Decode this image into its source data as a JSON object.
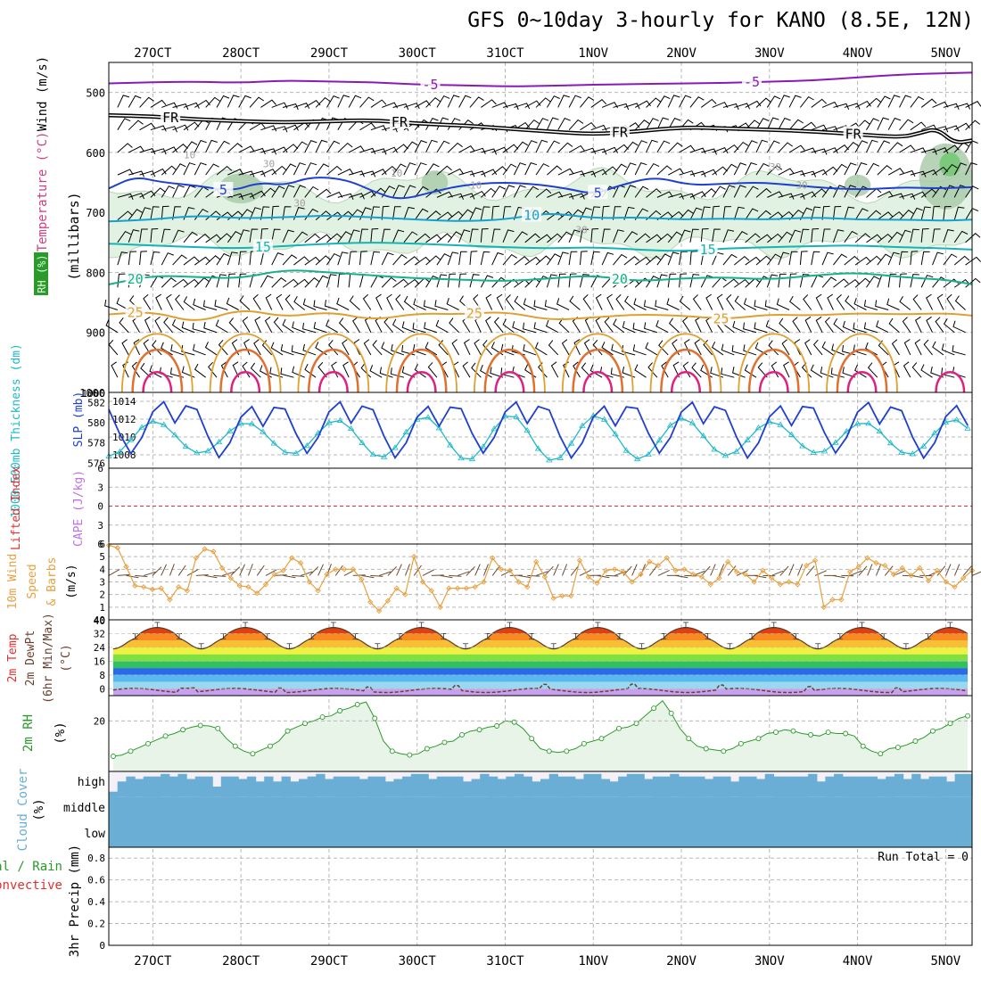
{
  "title": "GFS 0~10day 3-hourly for KANO (8.5E, 12N)",
  "colors": {
    "frame": "#000000",
    "grid": "#b8b8b8",
    "t_m5": "#8a1ab8",
    "t_fr": "#000000",
    "t_5": "#1f3fd0",
    "t_10": "#14a0d0",
    "t_15": "#14b4b4",
    "t_20": "#16b08a",
    "t_25": "#e0a030",
    "t_30": "#e07030",
    "t_35": "#e02080",
    "rh_fill": "#e2f2e2",
    "rh_line": "#2a9a2a",
    "slp": "#1f3fd0",
    "thickness": "#20b8c8",
    "lifted": "#e03030",
    "cape": "#c070e0",
    "wind_speed": "#e8a040",
    "barb": "#000000",
    "dewpt": "#6a4030",
    "cloud": "#6aaed6",
    "cloud_bg": "#f4f0f8",
    "precip_total": "#2a9a2a",
    "precip_conv": "#e03030"
  },
  "chart_data": [
    {
      "type": "line",
      "panel": "pressure-time cross-section",
      "title": "Wind / Temperature / RH",
      "xlabel": "",
      "ylabel": "millibars",
      "ylabel_parts": {
        "wind": "Wind (m/s)",
        "temp": "Temperature (°C)",
        "rh": "RH (%)",
        "mb": "(millibars)"
      },
      "x_categories": [
        "27OCT",
        "28OCT",
        "29OCT",
        "30OCT",
        "31OCT",
        "1NOV",
        "2NOV",
        "3NOV",
        "4NOV",
        "5NOV"
      ],
      "x_day_positions": [
        0.5,
        1.5,
        2.5,
        3.5,
        4.5,
        5.5,
        6.5,
        7.5,
        8.5,
        9.5
      ],
      "x_range": [
        0,
        9.8
      ],
      "ylim": [
        1000,
        450
      ],
      "yticks": [
        500,
        600,
        700,
        800,
        900,
        1000
      ],
      "series": [
        {
          "name": "-5",
          "color_key": "t_m5",
          "label": "-5",
          "label_x": [
            3.65,
            7.3
          ],
          "x": [
            0,
            0.5,
            1,
            1.5,
            2,
            2.5,
            3,
            3.5,
            4,
            4.5,
            5,
            5.5,
            6,
            6.5,
            7,
            7.5,
            8,
            8.5,
            9,
            9.5,
            9.8
          ],
          "p": [
            485,
            483,
            482,
            484,
            480,
            482,
            483,
            487,
            488,
            490,
            489,
            487,
            486,
            485,
            484,
            482,
            480,
            475,
            470,
            468,
            467
          ]
        },
        {
          "name": "FR",
          "color_key": "t_fr",
          "label": "FR",
          "label_x": [
            0.7,
            3.3,
            5.8,
            8.45
          ],
          "x": [
            0,
            0.5,
            1,
            1.5,
            2,
            2.5,
            3,
            3.5,
            4,
            4.5,
            5,
            5.5,
            6,
            6.5,
            7,
            7.5,
            8,
            8.5,
            9,
            9.2,
            9.4,
            9.6,
            9.8
          ],
          "p": [
            538,
            540,
            545,
            548,
            550,
            548,
            546,
            552,
            555,
            560,
            565,
            570,
            565,
            558,
            560,
            562,
            565,
            570,
            575,
            568,
            560,
            585,
            580
          ]
        },
        {
          "name": "5",
          "color_key": "t_5",
          "label": "5",
          "label_x": [
            1.3,
            5.55
          ],
          "x": [
            0,
            0.3,
            0.6,
            1,
            1.4,
            1.7,
            2,
            2.3,
            2.7,
            3,
            3.3,
            3.7,
            4,
            4.4,
            4.8,
            5.2,
            5.5,
            5.8,
            6.2,
            6.6,
            7,
            7.4,
            7.8,
            8.2,
            8.6,
            9,
            9.4,
            9.8
          ],
          "p": [
            660,
            640,
            650,
            655,
            665,
            650,
            655,
            640,
            645,
            665,
            680,
            665,
            655,
            650,
            652,
            660,
            670,
            655,
            640,
            655,
            652,
            650,
            655,
            660,
            662,
            658,
            660,
            658
          ]
        },
        {
          "name": "10",
          "color_key": "t_10",
          "label": "10",
          "label_x": [
            4.8
          ],
          "x": [
            0,
            0.5,
            1,
            1.5,
            2,
            2.5,
            3,
            3.5,
            4,
            4.5,
            5,
            5.5,
            6,
            6.5,
            7,
            7.5,
            8,
            8.5,
            9,
            9.5,
            9.8
          ],
          "p": [
            715,
            712,
            705,
            710,
            708,
            705,
            708,
            712,
            715,
            712,
            700,
            710,
            708,
            712,
            710,
            712,
            708,
            712,
            712,
            714,
            712
          ]
        },
        {
          "name": "15",
          "color_key": "t_15",
          "label": "15",
          "label_x": [
            1.75,
            6.8
          ],
          "x": [
            0,
            0.5,
            1,
            1.5,
            2,
            2.5,
            3,
            3.5,
            4,
            4.5,
            5,
            5.5,
            6,
            6.5,
            7,
            7.5,
            8,
            8.5,
            9,
            9.5,
            9.8
          ],
          "p": [
            752,
            755,
            758,
            760,
            756,
            752,
            750,
            752,
            755,
            758,
            760,
            758,
            762,
            765,
            760,
            758,
            756,
            755,
            758,
            760,
            762
          ]
        },
        {
          "name": "20",
          "color_key": "t_20",
          "label": "20",
          "label_x": [
            0.3,
            5.8
          ],
          "x": [
            0,
            0.5,
            1,
            1.5,
            2,
            2.5,
            3,
            3.5,
            4,
            4.5,
            5,
            5.5,
            6,
            6.5,
            7,
            7.5,
            8,
            8.5,
            9,
            9.5,
            9.8
          ],
          "p": [
            820,
            805,
            808,
            810,
            795,
            800,
            805,
            810,
            812,
            815,
            810,
            805,
            815,
            810,
            808,
            812,
            805,
            800,
            808,
            812,
            820
          ]
        },
        {
          "name": "25",
          "color_key": "t_25",
          "label": "25",
          "label_x": [
            0.3,
            4.15,
            6.95
          ],
          "x": [
            0,
            0.5,
            1,
            1.5,
            2,
            2.5,
            3,
            3.5,
            4,
            4.5,
            5,
            5.5,
            6,
            6.5,
            7,
            7.5,
            8,
            8.5,
            9,
            9.5,
            9.8
          ],
          "p": [
            870,
            865,
            885,
            860,
            875,
            865,
            880,
            868,
            870,
            865,
            880,
            875,
            870,
            872,
            878,
            870,
            872,
            868,
            870,
            868,
            872
          ]
        }
      ],
      "diurnal_contours": [
        {
          "name": "30",
          "color_key": "t_30",
          "base_p": 1000,
          "peak_p": 905,
          "width_day": 0.28
        },
        {
          "name": "35",
          "color_key": "t_35",
          "base_p": 1000,
          "peak_p": 955,
          "width_day": 0.16
        }
      ],
      "rh_contours": [
        "10",
        "30"
      ],
      "rh_fill_levels": [
        30,
        50,
        70,
        90
      ]
    },
    {
      "type": "line",
      "panel": "thickness and SLP",
      "ylabel_left": "1000-500mb Thickness (dm)",
      "ylabel_right": "SLP (mb)",
      "y_left_ticks": [
        576,
        578,
        580,
        582
      ],
      "y_left_range": [
        575.5,
        583
      ],
      "y_right_ticks": [
        1008,
        1010,
        1012,
        1014
      ],
      "y_right_range": [
        1006.5,
        1015
      ],
      "series": [
        {
          "name": "SLP (mb)",
          "axis": "right",
          "color_key": "slp",
          "diurnal_amplitude": 3.2,
          "mean": 1010.8
        },
        {
          "name": "1000-500mb Thickness (dm)",
          "axis": "left",
          "color_key": "thickness",
          "diurnal_amplitude": 1.9,
          "mean": 578.5
        }
      ]
    },
    {
      "type": "line",
      "panel": "stability",
      "ylabel_left": "Lifted Index",
      "ylabel_right": "CAPE (J/kg)",
      "y_ticks": [
        -6,
        -3,
        0,
        3,
        6
      ],
      "y_tick_labels": [
        "6",
        "3",
        "0",
        "3",
        "6"
      ],
      "ylim": [
        6,
        -6
      ],
      "series": [
        {
          "name": "Lifted Index zero line",
          "color_key": "lifted",
          "values_at": 0
        }
      ]
    },
    {
      "type": "line",
      "panel": "10m wind",
      "ylabel": "10m Wind Speed & Barbs (m/s)",
      "ylabel_parts": [
        "10m Wind",
        "Speed",
        "& Barbs",
        "(m/s)"
      ],
      "y_ticks": [
        1,
        2,
        3,
        4,
        5,
        6
      ],
      "ylim": [
        0,
        6
      ],
      "series": [
        {
          "name": "10m wind speed (m/s)",
          "color_key": "wind_speed",
          "values": [
            5.9,
            5.7,
            4.2,
            2.7,
            2.6,
            2.4,
            2.5,
            1.6,
            2.6,
            2.3,
            4.9,
            5.6,
            5.4,
            4.1,
            3.3,
            2.7,
            2.6,
            2.1,
            2.8,
            3.6,
            3.9,
            4.9,
            4.5,
            3.0,
            2.3,
            3.6,
            4.0,
            4.0,
            4.0,
            3.2,
            1.4,
            0.7,
            1.5,
            2.5,
            2.0,
            5.0,
            3.0,
            2.3,
            1.0,
            2.5,
            2.5,
            2.5,
            2.6,
            3.0,
            4.9,
            4.0,
            3.9,
            3.0,
            2.6,
            4.6,
            3.4,
            1.7,
            1.9,
            1.9,
            4.7,
            3.4,
            2.9,
            3.9,
            4.0,
            3.8,
            3.0,
            3.6,
            4.6,
            4.3,
            4.9,
            3.9,
            4.0,
            3.6,
            3.4,
            2.8,
            3.3,
            4.6,
            3.8,
            3.6,
            3.0,
            3.9,
            3.3,
            2.8,
            3.0,
            2.8,
            4.3,
            4.7,
            1.0,
            1.6,
            1.6,
            3.8,
            4.2,
            4.9,
            4.5,
            4.3,
            3.6,
            4.1,
            3.5,
            4.1,
            3.1,
            3.9,
            3.0,
            2.6,
            3.3,
            3.9
          ]
        }
      ]
    },
    {
      "type": "area",
      "panel": "2m temperature",
      "ylabel": "2m Temp 2m DewPt (6hr Min/Max) (°C)",
      "ylabel_parts": [
        "2m Temp",
        "2m DewPt",
        "(6hr Min/Max)",
        "(°C)"
      ],
      "y_ticks": [
        0,
        8,
        16,
        24,
        32,
        40
      ],
      "ylim": [
        -4,
        40
      ],
      "series": [
        {
          "name": "2m Temp (°C)",
          "daily_min": 22.5,
          "daily_max": 35.5,
          "peak_offset_day": 0.55
        },
        {
          "name": "2m DewPt (°C)",
          "color_key": "dewpt",
          "mean": -1.0,
          "amplitude": 2.0
        }
      ],
      "color_bands": [
        {
          "from": -4,
          "to": 0,
          "color": "#c8a0f0"
        },
        {
          "from": 0,
          "to": 4,
          "color": "#9ad8f0"
        },
        {
          "from": 4,
          "to": 8,
          "color": "#58b8f0"
        },
        {
          "from": 8,
          "to": 12,
          "color": "#2a6ae8"
        },
        {
          "from": 12,
          "to": 16,
          "color": "#30c060"
        },
        {
          "from": 16,
          "to": 20,
          "color": "#80e040"
        },
        {
          "from": 20,
          "to": 24,
          "color": "#f0f040"
        },
        {
          "from": 24,
          "to": 28,
          "color": "#f8c030"
        },
        {
          "from": 28,
          "to": 32,
          "color": "#f88a20"
        },
        {
          "from": 32,
          "to": 36,
          "color": "#e04010"
        },
        {
          "from": 36,
          "to": 40,
          "color": "#c01010"
        }
      ]
    },
    {
      "type": "area",
      "panel": "2m RH",
      "ylabel": "2m RH (%)",
      "ylabel_parts": [
        "2m RH",
        "(%)"
      ],
      "y_ticks": [
        20
      ],
      "ylim": [
        0,
        30
      ],
      "series": [
        {
          "name": "2m RH (%)",
          "color_key": "rh_line",
          "values": [
            6,
            6.5,
            8,
            9.5,
            11,
            12.5,
            14,
            15,
            16.5,
            17.5,
            18.2,
            18,
            17,
            13,
            10,
            8,
            7,
            8.5,
            10,
            12,
            16,
            17.5,
            19,
            20,
            21.5,
            22,
            24,
            25,
            26.5,
            27.5,
            21,
            12,
            8,
            7,
            6.5,
            7,
            9,
            10,
            11.5,
            12,
            14.5,
            16,
            16.5,
            17.5,
            18,
            20,
            19.5,
            17,
            13,
            9,
            8,
            7.5,
            8,
            9,
            11,
            12,
            13,
            15,
            17,
            17.5,
            19,
            22,
            25,
            28,
            23,
            17,
            13,
            10,
            9,
            8.5,
            8,
            9,
            11,
            12,
            13,
            15,
            15.5,
            16.5,
            16,
            15,
            14.5,
            14,
            15.5,
            15,
            15,
            14,
            10,
            8,
            7,
            9,
            9.5,
            10.5,
            12,
            13.5,
            16,
            17,
            19,
            21,
            22
          ]
        }
      ]
    },
    {
      "type": "area",
      "panel": "cloud cover",
      "ylabel": "Cloud Cover (%)",
      "ylabel_parts": [
        "Cloud Cover",
        "(%)"
      ],
      "y_tick_labels": [
        "high",
        "middle",
        "low"
      ],
      "series": [
        {
          "name": "high cloud cover (%)",
          "color_key": "cloud",
          "values": [
            20,
            60,
            80,
            70,
            80,
            80,
            90,
            80,
            90,
            70,
            80,
            80,
            40,
            80,
            80,
            70,
            80,
            60,
            80,
            60,
            80,
            60,
            70,
            80,
            90,
            70,
            80,
            80,
            80,
            70,
            80,
            80,
            60,
            70,
            80,
            90,
            90,
            70,
            80,
            80,
            80,
            60,
            70,
            90,
            80,
            70,
            80,
            90,
            80,
            60,
            70,
            90,
            80,
            80,
            70,
            90,
            90,
            70,
            60,
            80,
            90,
            90,
            70,
            80,
            80,
            90,
            80,
            80,
            80,
            70,
            80,
            80,
            60,
            80,
            80,
            70,
            90,
            80,
            80,
            80,
            80,
            90,
            60,
            80,
            90,
            80,
            80,
            80,
            80,
            70,
            80,
            90,
            70,
            90,
            70,
            80,
            80,
            60,
            90,
            90
          ]
        },
        {
          "name": "middle cloud cover (%)",
          "color_key": "cloud",
          "value": 100
        },
        {
          "name": "low cloud cover (%)",
          "color_key": "cloud",
          "value": 100
        }
      ]
    },
    {
      "type": "bar",
      "panel": "3hr precipitation",
      "ylabel": "3hr Precip (mm)",
      "legend": [
        {
          "label": "Total / Rain",
          "color_key": "precip_total"
        },
        {
          "label": "Convective",
          "color_key": "precip_conv"
        }
      ],
      "annotation": "Run Total = 0",
      "y_ticks": [
        0,
        0.2,
        0.4,
        0.6,
        0.8
      ],
      "ylim": [
        0,
        0.9
      ],
      "values": []
    }
  ]
}
